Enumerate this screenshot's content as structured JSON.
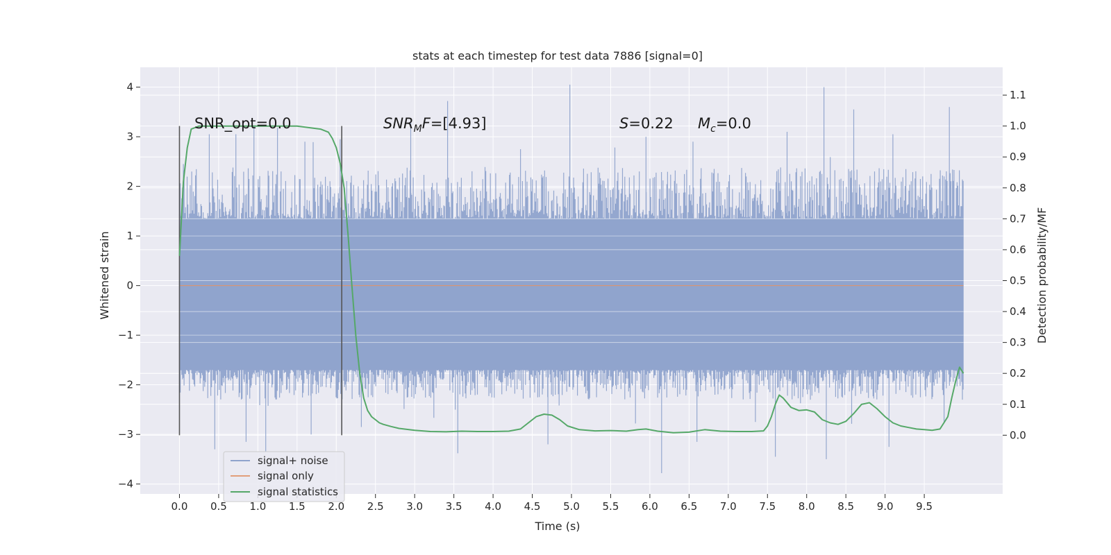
{
  "chart_data": {
    "type": "line",
    "title": "stats at each timestep for test data 7886 [signal=0]",
    "xlabel": "Time (s)",
    "ylabel": "Whitened strain",
    "y2label": "Detection probability/MF",
    "xlim": [
      -0.5,
      10.5
    ],
    "ylim": [
      -4.2,
      4.4
    ],
    "y2lim": [
      -0.19,
      1.19
    ],
    "x_ticks": [
      "0.0",
      "0.5",
      "1.0",
      "1.5",
      "2.0",
      "2.5",
      "3.0",
      "3.5",
      "4.0",
      "4.5",
      "5.0",
      "5.5",
      "6.0",
      "6.5",
      "7.0",
      "7.5",
      "8.0",
      "8.5",
      "9.0",
      "9.5"
    ],
    "y_ticks": [
      "4",
      "3",
      "2",
      "1",
      "0",
      "−1",
      "−2",
      "−3",
      "−4"
    ],
    "y2_ticks": [
      "1.1",
      "1.0",
      "0.9",
      "0.8",
      "0.7",
      "0.6",
      "0.5",
      "0.4",
      "0.3",
      "0.2",
      "0.1",
      "0.0"
    ],
    "grid": true,
    "legend_position": "lower-left",
    "legend": [
      "signal+ noise",
      "signal only",
      "signal statistics"
    ],
    "colors": {
      "noise": "#8fa3cc",
      "signal": "#dd8452",
      "stats": "#55a868",
      "background": "#eaeaf2",
      "grid": "#ffffff",
      "window": "#555555"
    },
    "annotations": {
      "snr_opt": "SNR_opt=0.0",
      "snr_mf_italic": "SNR",
      "snr_mf_sub": "M",
      "snr_mf_tail": "F",
      "snr_mf_value": "=[4.93]",
      "s_italic": "S",
      "s_value": "=0.22",
      "mc_italic": "M",
      "mc_sub": "c",
      "mc_value": "=0.0"
    },
    "window_lines_x": [
      0.0,
      2.07
    ],
    "noise_envelope": {
      "x_start": 0.0,
      "x_end": 10.0,
      "typical_max": 2.4,
      "typical_min": -2.3,
      "dense_band": [
        -1.7,
        1.35
      ]
    },
    "noise_peaks": [
      {
        "x": 0.05,
        "y": 2.45
      },
      {
        "x": 0.38,
        "y": 3.05
      },
      {
        "x": 0.72,
        "y": 3.05
      },
      {
        "x": 0.95,
        "y": 3.2
      },
      {
        "x": 1.25,
        "y": 3.18
      },
      {
        "x": 1.6,
        "y": 2.9
      },
      {
        "x": 2.05,
        "y": 2.95
      },
      {
        "x": 2.95,
        "y": 3.3
      },
      {
        "x": 3.42,
        "y": 3.72
      },
      {
        "x": 4.35,
        "y": 2.75
      },
      {
        "x": 4.98,
        "y": 4.05
      },
      {
        "x": 5.95,
        "y": 3.0
      },
      {
        "x": 6.55,
        "y": 2.9
      },
      {
        "x": 7.75,
        "y": 3.1
      },
      {
        "x": 8.22,
        "y": 4.0
      },
      {
        "x": 8.6,
        "y": 3.55
      },
      {
        "x": 9.1,
        "y": 3.05
      },
      {
        "x": 9.82,
        "y": 3.6
      }
    ],
    "noise_troughs": [
      {
        "x": 0.45,
        "y": -3.3
      },
      {
        "x": 0.85,
        "y": -3.15
      },
      {
        "x": 1.1,
        "y": -3.35
      },
      {
        "x": 1.68,
        "y": -3.0
      },
      {
        "x": 2.32,
        "y": -2.85
      },
      {
        "x": 3.55,
        "y": -3.38
      },
      {
        "x": 4.7,
        "y": -3.2
      },
      {
        "x": 6.15,
        "y": -3.78
      },
      {
        "x": 6.6,
        "y": -3.15
      },
      {
        "x": 7.6,
        "y": -3.45
      },
      {
        "x": 8.25,
        "y": -3.5
      },
      {
        "x": 9.05,
        "y": -3.25
      }
    ],
    "signal_only": {
      "x": [
        0.0,
        10.0
      ],
      "y": [
        0.0,
        0.0
      ]
    },
    "signal_statistics": {
      "x": [
        0.0,
        0.05,
        0.1,
        0.15,
        0.25,
        0.4,
        0.6,
        1.0,
        1.5,
        1.8,
        1.9,
        1.95,
        2.0,
        2.05,
        2.1,
        2.15,
        2.2,
        2.25,
        2.3,
        2.35,
        2.4,
        2.45,
        2.5,
        2.55,
        2.6,
        2.7,
        2.8,
        3.0,
        3.2,
        3.4,
        3.6,
        3.8,
        4.0,
        4.2,
        4.35,
        4.45,
        4.55,
        4.65,
        4.75,
        4.85,
        4.95,
        5.1,
        5.3,
        5.5,
        5.7,
        5.85,
        5.95,
        6.1,
        6.3,
        6.5,
        6.7,
        6.9,
        7.1,
        7.3,
        7.45,
        7.5,
        7.55,
        7.6,
        7.65,
        7.7,
        7.8,
        7.9,
        8.0,
        8.1,
        8.2,
        8.3,
        8.4,
        8.5,
        8.6,
        8.7,
        8.8,
        8.9,
        9.0,
        9.1,
        9.2,
        9.3,
        9.4,
        9.5,
        9.6,
        9.7,
        9.8,
        9.85,
        9.9,
        9.95,
        10.0
      ],
      "y": [
        0.58,
        0.82,
        0.93,
        0.99,
        1.0,
        1.0,
        1.0,
        1.0,
        1.0,
        0.99,
        0.98,
        0.96,
        0.93,
        0.88,
        0.8,
        0.65,
        0.48,
        0.32,
        0.2,
        0.12,
        0.08,
        0.06,
        0.05,
        0.04,
        0.035,
        0.028,
        0.022,
        0.016,
        0.012,
        0.011,
        0.013,
        0.012,
        0.012,
        0.013,
        0.02,
        0.04,
        0.06,
        0.068,
        0.065,
        0.05,
        0.03,
        0.018,
        0.014,
        0.015,
        0.013,
        0.018,
        0.02,
        0.013,
        0.008,
        0.01,
        0.018,
        0.013,
        0.012,
        0.012,
        0.014,
        0.03,
        0.06,
        0.1,
        0.13,
        0.12,
        0.09,
        0.08,
        0.082,
        0.075,
        0.05,
        0.04,
        0.035,
        0.045,
        0.07,
        0.1,
        0.105,
        0.085,
        0.06,
        0.04,
        0.03,
        0.025,
        0.02,
        0.018,
        0.016,
        0.02,
        0.06,
        0.12,
        0.175,
        0.22,
        0.2
      ]
    }
  }
}
